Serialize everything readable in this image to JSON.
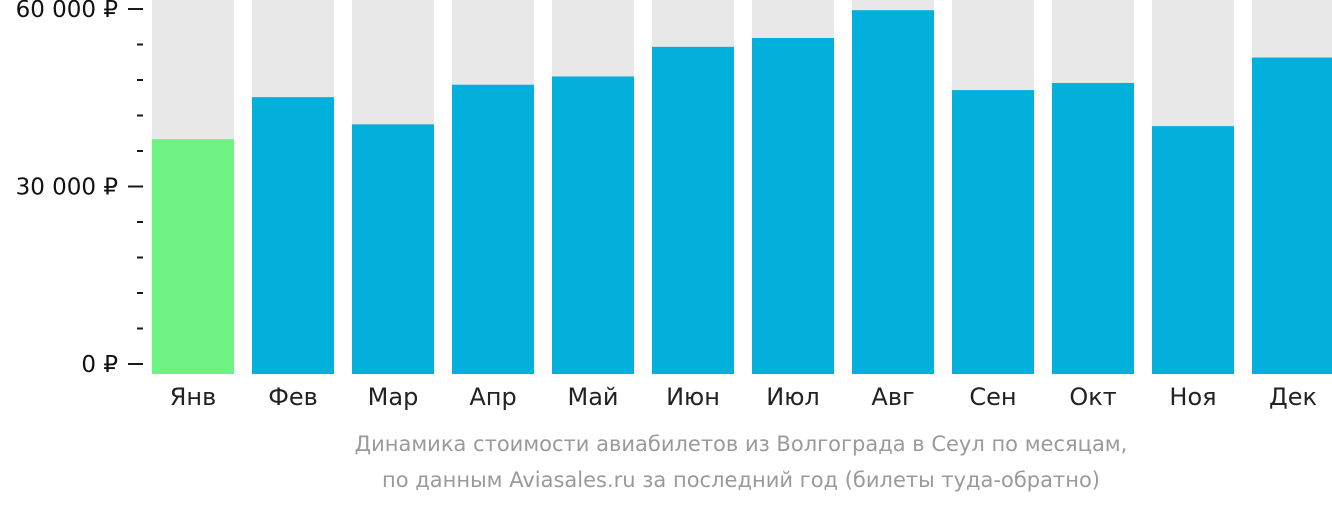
{
  "chart_data": {
    "type": "bar",
    "categories": [
      "Янв",
      "Фев",
      "Мар",
      "Апр",
      "Май",
      "Июн",
      "Июл",
      "Авг",
      "Сен",
      "Окт",
      "Ноя",
      "Дек"
    ],
    "values": [
      38000,
      45100,
      40500,
      47200,
      48600,
      53600,
      55100,
      59800,
      46300,
      47500,
      40200,
      51800
    ],
    "highlight_index": 0,
    "ylim": [
      0,
      62000
    ],
    "y_ticks": [
      {
        "value": 0,
        "label": "0 ₽"
      },
      {
        "value": 30000,
        "label": "30 000 ₽"
      },
      {
        "value": 60000,
        "label": "60 000 ₽"
      }
    ],
    "minor_tick_step": 6000,
    "colors": {
      "bar": "#03b0dc",
      "highlight": "#6ef283",
      "background_bar": "#e8e8e8",
      "axis": "#1a1a1a",
      "caption": "#9a9a9a"
    },
    "grid": false,
    "caption": {
      "line1": "Динамика стоимости авиабилетов из Волгограда в Сеул по месяцам,",
      "line2": "по данным Aviasales.ru за последний год (билеты туда-обратно)"
    }
  }
}
